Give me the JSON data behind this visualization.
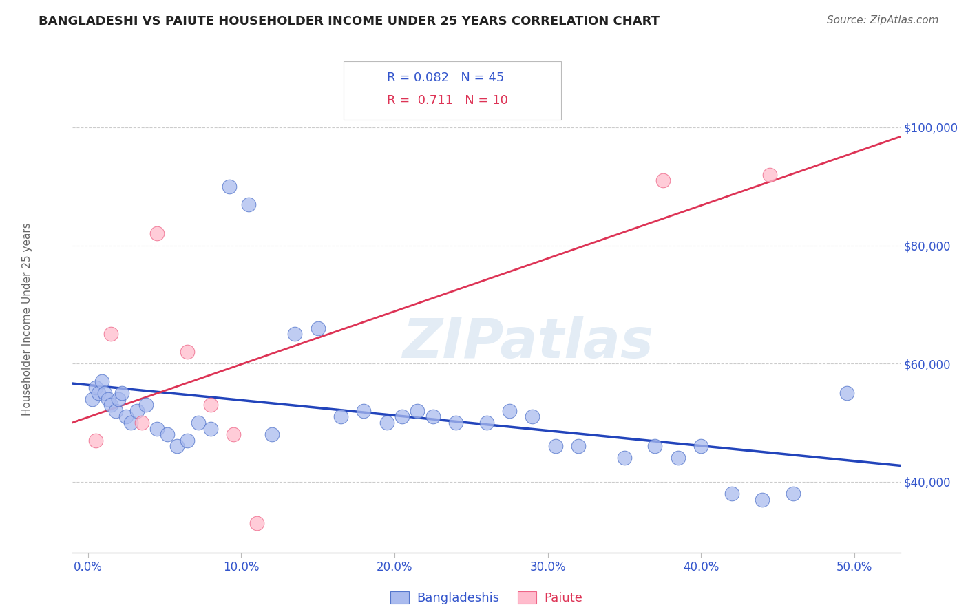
{
  "title": "BANGLADESHI VS PAIUTE HOUSEHOLDER INCOME UNDER 25 YEARS CORRELATION CHART",
  "source": "Source: ZipAtlas.com",
  "ylabel": "Householder Income Under 25 years",
  "xlabel_ticks": [
    "0.0%",
    "10.0%",
    "20.0%",
    "30.0%",
    "40.0%",
    "50.0%"
  ],
  "xlabel_vals": [
    0.0,
    10.0,
    20.0,
    30.0,
    40.0,
    50.0
  ],
  "ylabel_ticks": [
    "$40,000",
    "$60,000",
    "$80,000",
    "$100,000"
  ],
  "ylabel_vals": [
    40000,
    60000,
    80000,
    100000
  ],
  "ylim": [
    28000,
    107000
  ],
  "xlim": [
    -1.0,
    53.0
  ],
  "r_bangladeshi": 0.082,
  "n_bangladeshi": 45,
  "r_paiute": 0.711,
  "n_paiute": 10,
  "color_blue_fill": "#aabbee",
  "color_pink_fill": "#ffbbcc",
  "color_blue_edge": "#5577cc",
  "color_pink_edge": "#ee6688",
  "color_blue_line": "#2244bb",
  "color_pink_line": "#dd3355",
  "color_label_dark": "#333333",
  "color_label_blue": "#3355cc",
  "watermark": "ZIPatlas",
  "bd_x": [
    0.3,
    0.5,
    0.7,
    0.9,
    1.1,
    1.3,
    1.5,
    1.8,
    2.0,
    2.2,
    2.5,
    2.8,
    3.2,
    3.8,
    4.5,
    5.2,
    5.8,
    6.5,
    7.2,
    8.0,
    9.2,
    10.5,
    12.0,
    13.5,
    15.0,
    16.5,
    18.0,
    19.5,
    20.5,
    21.5,
    22.5,
    24.0,
    26.0,
    27.5,
    29.0,
    30.5,
    32.0,
    35.0,
    37.0,
    38.5,
    40.0,
    42.0,
    44.0,
    46.0,
    49.5
  ],
  "bd_y": [
    54000,
    56000,
    55000,
    57000,
    55000,
    54000,
    53000,
    52000,
    54000,
    55000,
    51000,
    50000,
    52000,
    53000,
    49000,
    48000,
    46000,
    47000,
    50000,
    49000,
    90000,
    87000,
    48000,
    65000,
    66000,
    51000,
    52000,
    50000,
    51000,
    52000,
    51000,
    50000,
    50000,
    52000,
    51000,
    46000,
    46000,
    44000,
    46000,
    44000,
    46000,
    38000,
    37000,
    38000,
    55000
  ],
  "pa_x": [
    0.5,
    1.5,
    3.5,
    4.5,
    6.5,
    8.0,
    9.5,
    11.0,
    37.5,
    44.5
  ],
  "pa_y": [
    47000,
    65000,
    50000,
    82000,
    62000,
    53000,
    48000,
    33000,
    91000,
    92000
  ]
}
